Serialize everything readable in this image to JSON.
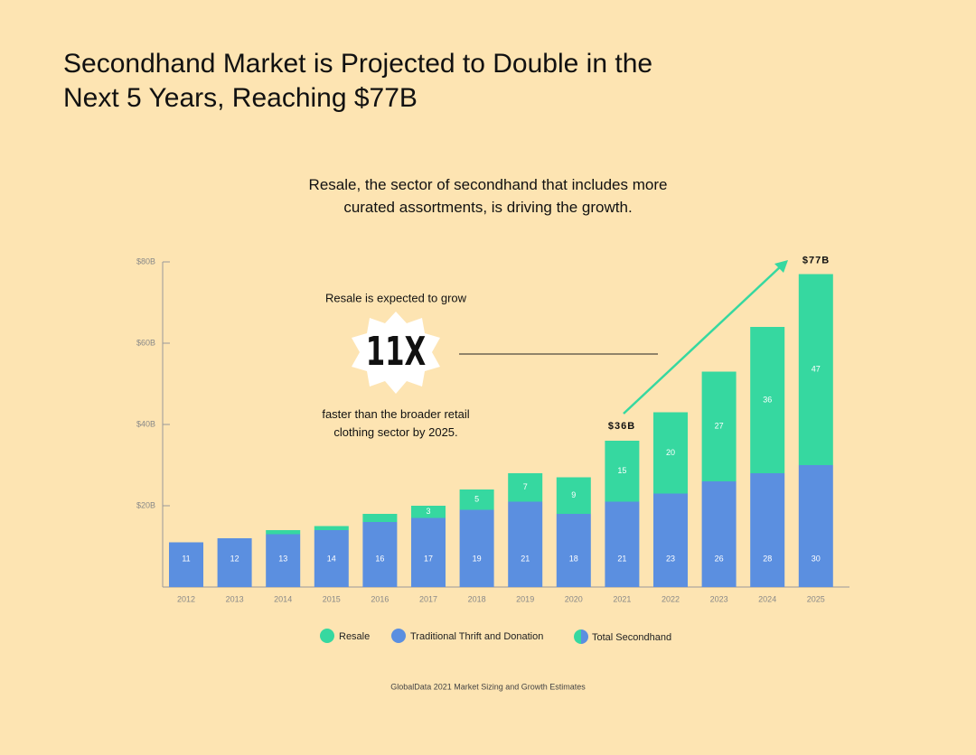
{
  "chart_data": {
    "type": "stacked-bar",
    "title": "Secondhand Market is Projected to Double in the Next 5 Years, Reaching $77B",
    "subtitle": "Resale, the sector of secondhand that includes more curated assortments, is driving the growth.",
    "categories": [
      "2012",
      "2013",
      "2014",
      "2015",
      "2016",
      "2017",
      "2018",
      "2019",
      "2020",
      "2021",
      "2022",
      "2023",
      "2024",
      "2025"
    ],
    "series": [
      {
        "name": "Traditional Thrift and Donation",
        "color": "#5b8fe0",
        "values": [
          11,
          12,
          13,
          14,
          16,
          17,
          19,
          21,
          18,
          21,
          23,
          26,
          28,
          30
        ]
      },
      {
        "name": "Resale",
        "color": "#36d8a0",
        "values": [
          0,
          0,
          1,
          1,
          2,
          3,
          5,
          7,
          9,
          15,
          20,
          27,
          36,
          47
        ],
        "value_labels": [
          null,
          null,
          null,
          null,
          null,
          "3",
          "5",
          "7",
          "9",
          "15",
          "20",
          "27",
          "36",
          "47"
        ]
      }
    ],
    "total_legend": "Total Secondhand",
    "annotations": [
      {
        "label": "$36B",
        "value": 36
      },
      {
        "label": "$77B",
        "value": 77
      }
    ],
    "callout": {
      "intro": "Resale is expected to grow",
      "figure": "11X",
      "outro": "faster than the broader retail clothing sector by 2025."
    },
    "source": "GlobalData 2021 Market Sizing and Growth Estimates",
    "ylim": [
      0,
      80
    ],
    "yticks": [
      {
        "value": 20,
        "label": "$20B"
      },
      {
        "value": 40,
        "label": "$40B"
      },
      {
        "value": 60,
        "label": "$60B"
      },
      {
        "value": 80,
        "label": "$80B"
      }
    ]
  }
}
